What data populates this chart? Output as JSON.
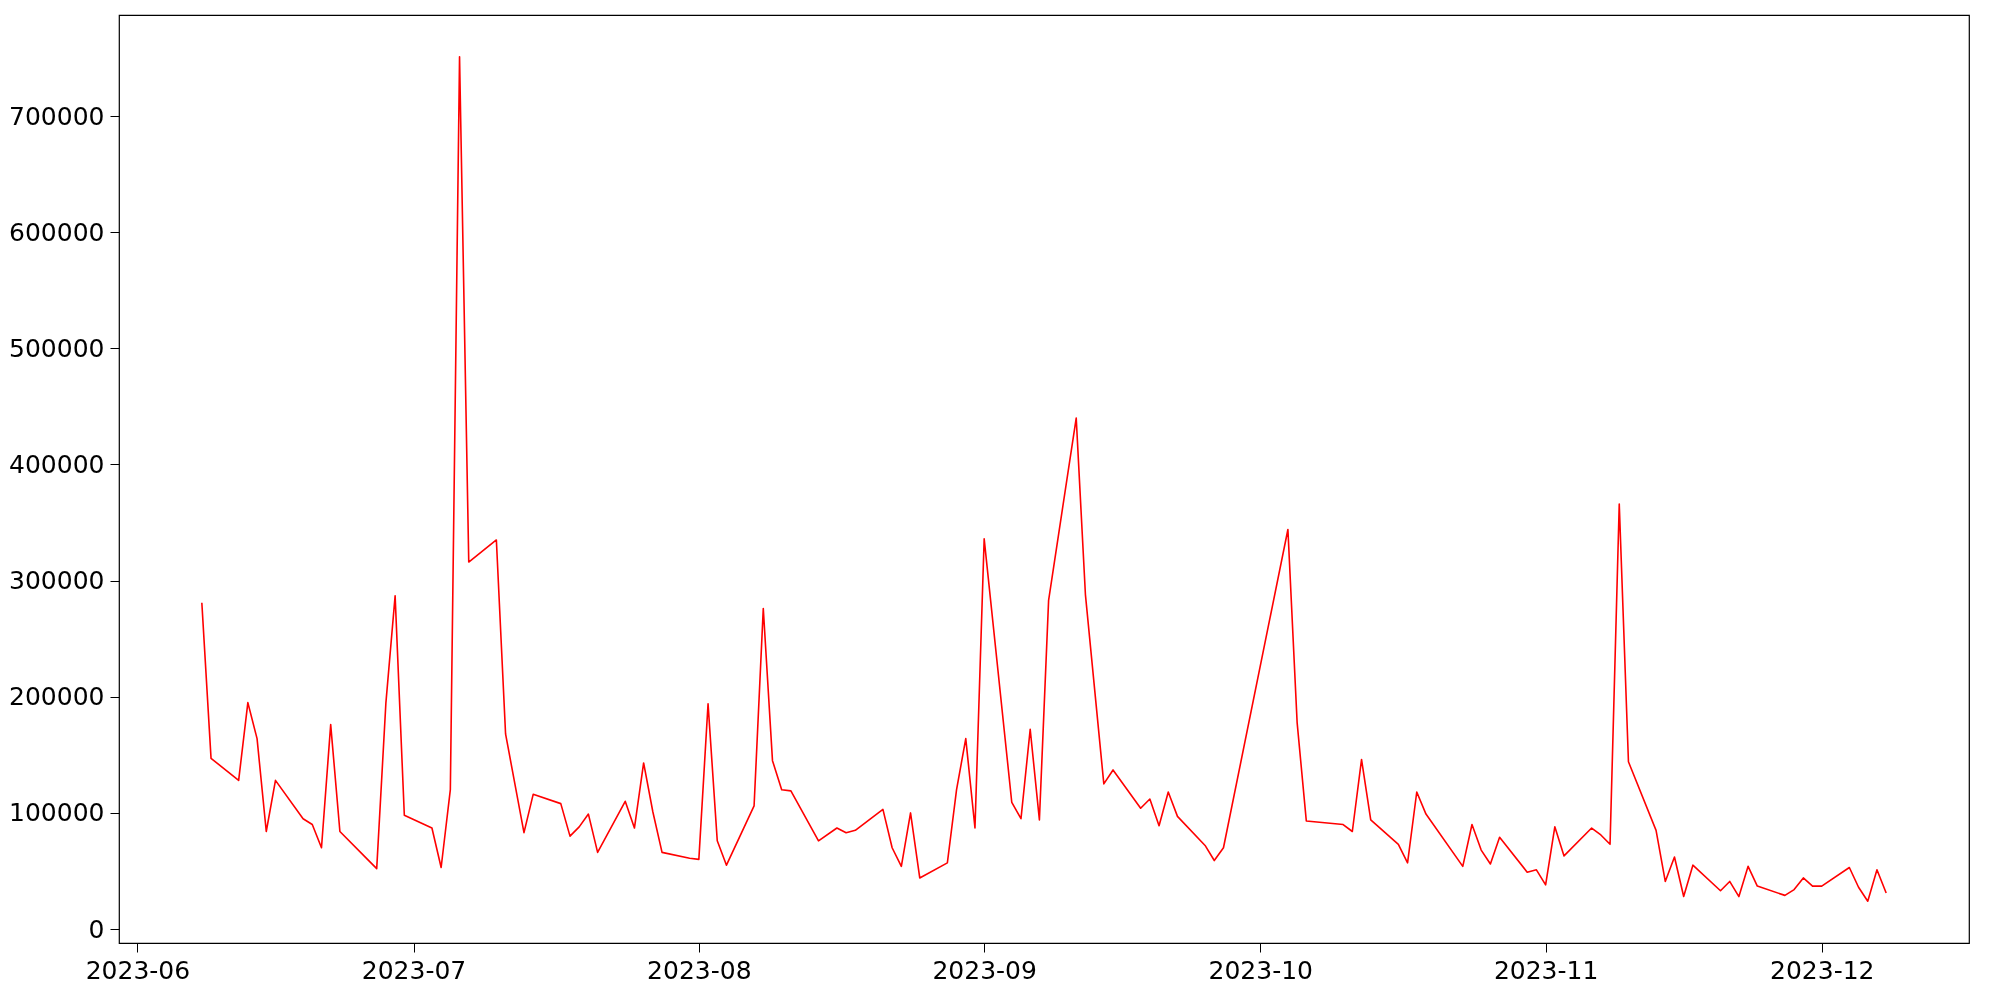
{
  "chart_data": {
    "type": "line",
    "x": [
      "2023-06-08",
      "2023-06-09",
      "2023-06-12",
      "2023-06-13",
      "2023-06-14",
      "2023-06-15",
      "2023-06-16",
      "2023-06-19",
      "2023-06-20",
      "2023-06-21",
      "2023-06-22",
      "2023-06-23",
      "2023-06-26",
      "2023-06-27",
      "2023-06-28",
      "2023-06-29",
      "2023-06-30",
      "2023-07-03",
      "2023-07-04",
      "2023-07-05",
      "2023-07-06",
      "2023-07-07",
      "2023-07-10",
      "2023-07-11",
      "2023-07-13",
      "2023-07-14",
      "2023-07-17",
      "2023-07-18",
      "2023-07-19",
      "2023-07-20",
      "2023-07-21",
      "2023-07-24",
      "2023-07-25",
      "2023-07-26",
      "2023-07-27",
      "2023-07-28",
      "2023-07-31",
      "2023-08-01",
      "2023-08-02",
      "2023-08-03",
      "2023-08-04",
      "2023-08-07",
      "2023-08-08",
      "2023-08-09",
      "2023-08-10",
      "2023-08-11",
      "2023-08-14",
      "2023-08-16",
      "2023-08-17",
      "2023-08-18",
      "2023-08-21",
      "2023-08-22",
      "2023-08-23",
      "2023-08-24",
      "2023-08-25",
      "2023-08-28",
      "2023-08-29",
      "2023-08-30",
      "2023-08-31",
      "2023-09-01",
      "2023-09-04",
      "2023-09-05",
      "2023-09-06",
      "2023-09-07",
      "2023-09-08",
      "2023-09-11",
      "2023-09-12",
      "2023-09-14",
      "2023-09-15",
      "2023-09-18",
      "2023-09-19",
      "2023-09-20",
      "2023-09-21",
      "2023-09-22",
      "2023-09-25",
      "2023-09-26",
      "2023-09-27",
      "2023-10-04",
      "2023-10-05",
      "2023-10-06",
      "2023-10-10",
      "2023-10-11",
      "2023-10-12",
      "2023-10-13",
      "2023-10-16",
      "2023-10-17",
      "2023-10-18",
      "2023-10-19",
      "2023-10-23",
      "2023-10-24",
      "2023-10-25",
      "2023-10-26",
      "2023-10-27",
      "2023-10-30",
      "2023-10-31",
      "2023-11-01",
      "2023-11-02",
      "2023-11-03",
      "2023-11-06",
      "2023-11-07",
      "2023-11-08",
      "2023-11-09",
      "2023-11-10",
      "2023-11-13",
      "2023-11-14",
      "2023-11-15",
      "2023-11-16",
      "2023-11-17",
      "2023-11-20",
      "2023-11-21",
      "2023-11-22",
      "2023-11-23",
      "2023-11-24",
      "2023-11-27",
      "2023-11-28",
      "2023-11-29",
      "2023-11-30",
      "2023-12-01",
      "2023-12-04",
      "2023-12-05",
      "2023-12-06",
      "2023-12-07",
      "2023-12-08"
    ],
    "series": [
      {
        "color": "#ff0000",
        "values": [
          281000,
          147000,
          128000,
          195000,
          164000,
          84000,
          128000,
          95000,
          90000,
          70000,
          176000,
          84000,
          60000,
          52000,
          195000,
          287000,
          98000,
          87000,
          53000,
          120000,
          751000,
          316000,
          335000,
          168000,
          83000,
          116000,
          108000,
          80000,
          88000,
          99000,
          66000,
          110000,
          87000,
          143000,
          101000,
          66000,
          61000,
          60000,
          194000,
          76000,
          55000,
          106000,
          276000,
          145000,
          120000,
          119000,
          76000,
          87000,
          83000,
          85000,
          103000,
          70000,
          54000,
          100000,
          44000,
          57000,
          120000,
          164000,
          87000,
          336000,
          109000,
          95000,
          172000,
          94000,
          283000,
          440000,
          288000,
          125000,
          137000,
          104000,
          112000,
          89000,
          118000,
          97000,
          72000,
          59000,
          70000,
          344000,
          178000,
          93000,
          90000,
          84000,
          146000,
          94000,
          73000,
          57000,
          118000,
          99000,
          54000,
          90000,
          68000,
          56000,
          79000,
          49000,
          51000,
          38000,
          88000,
          63000,
          87000,
          81000,
          73000,
          366000,
          144000,
          85000,
          41000,
          62000,
          28000,
          55000,
          33000,
          41000,
          28000,
          54000,
          37000,
          29000,
          34000,
          44000,
          37000,
          37000,
          53000,
          36000,
          24000,
          51000,
          31000
        ]
      }
    ],
    "xlim": [
      "2023-05-30",
      "2023-12-17"
    ],
    "xticks": [
      {
        "value": "2023-06-01",
        "label": "2023-06"
      },
      {
        "value": "2023-07-01",
        "label": "2023-07"
      },
      {
        "value": "2023-08-01",
        "label": "2023-08"
      },
      {
        "value": "2023-09-01",
        "label": "2023-09"
      },
      {
        "value": "2023-10-01",
        "label": "2023-10"
      },
      {
        "value": "2023-11-01",
        "label": "2023-11"
      },
      {
        "value": "2023-12-01",
        "label": "2023-12"
      }
    ],
    "ylim": [
      -12000,
      787000
    ],
    "yticks": [
      0,
      100000,
      200000,
      300000,
      400000,
      500000,
      600000,
      700000
    ],
    "grid": false,
    "line_style": "solid"
  }
}
